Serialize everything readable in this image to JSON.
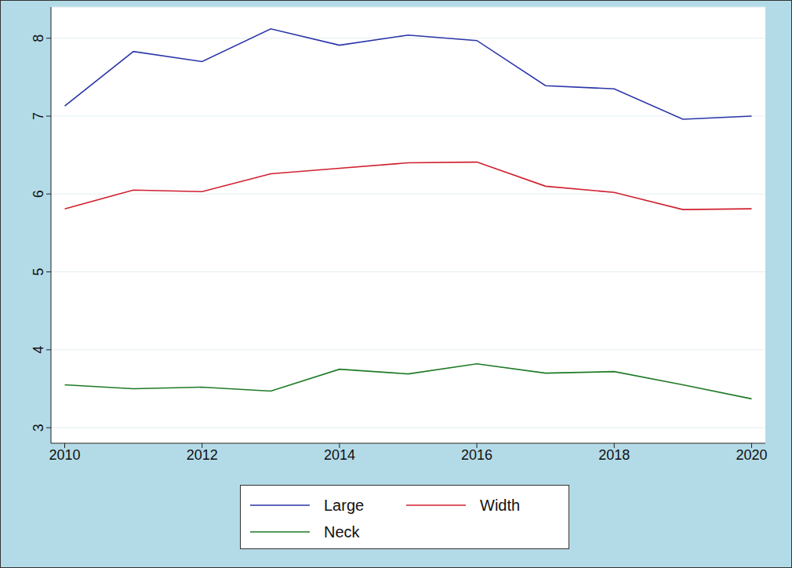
{
  "chart_data": {
    "type": "line",
    "x": [
      2010,
      2011,
      2012,
      2013,
      2014,
      2015,
      2016,
      2017,
      2018,
      2019,
      2020
    ],
    "series": [
      {
        "name": "Large",
        "color": "#2a35a8",
        "values": [
          7.13,
          7.83,
          7.7,
          8.12,
          7.91,
          8.04,
          7.97,
          7.39,
          7.35,
          6.96,
          7.0
        ]
      },
      {
        "name": "Width",
        "color": "#d0202e",
        "values": [
          5.81,
          6.05,
          6.03,
          6.26,
          6.33,
          6.4,
          6.41,
          6.1,
          6.02,
          5.8,
          5.81
        ]
      },
      {
        "name": "Neck",
        "color": "#1e7a26",
        "values": [
          3.55,
          3.5,
          3.52,
          3.47,
          3.75,
          3.69,
          3.82,
          3.7,
          3.72,
          3.55,
          3.37
        ]
      }
    ],
    "xlim": [
      2009.8,
      2020.2
    ],
    "xticks": [
      2010,
      2012,
      2014,
      2016,
      2018,
      2020
    ],
    "ylim": [
      2.8,
      8.4
    ],
    "yticks": [
      3,
      4,
      5,
      6,
      7,
      8
    ],
    "grid": true,
    "legend": "bottom"
  }
}
